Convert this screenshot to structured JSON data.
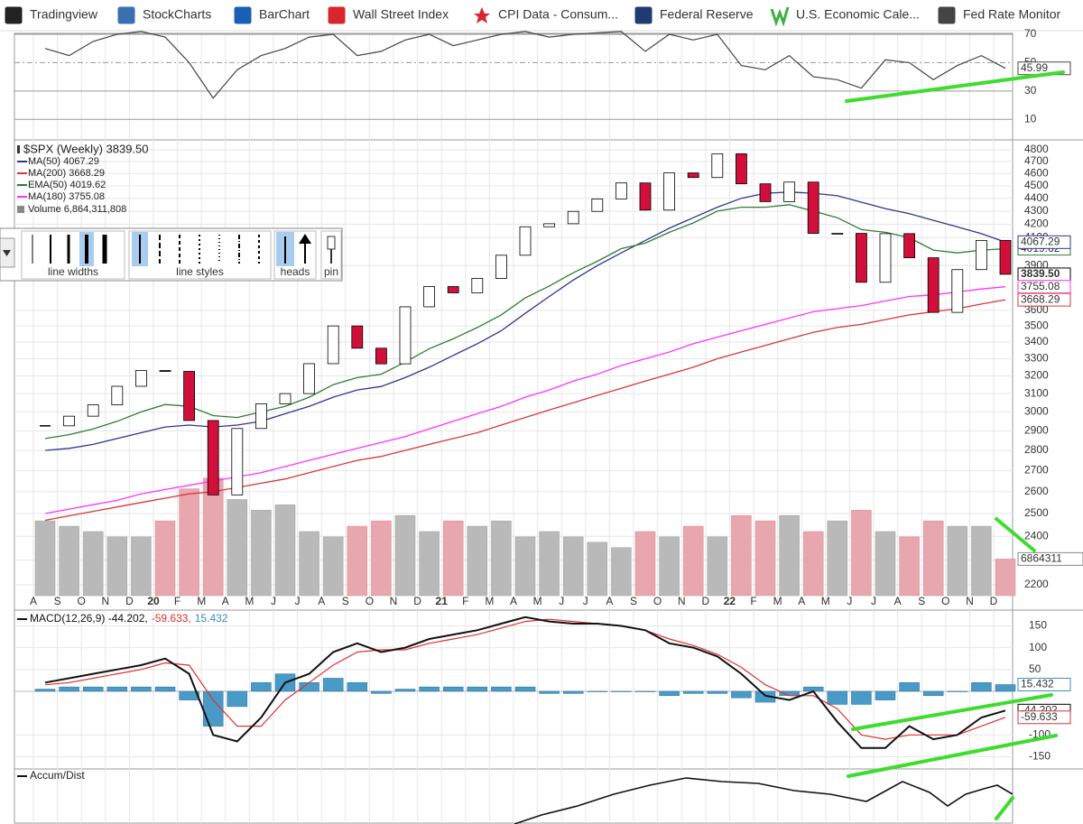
{
  "bookmarks": [
    "Tradingview",
    "StockCharts",
    "BarChart",
    "Wall Street Index",
    "CPI Data - Consum...",
    "Federal Reserve",
    "U.S. Economic Cale...",
    "Fed Rate Monitor"
  ],
  "months": [
    "A",
    "S",
    "O",
    "N",
    "D",
    "20",
    "F",
    "M",
    "A",
    "M",
    "J",
    "J",
    "A",
    "S",
    "O",
    "N",
    "D",
    "21",
    "F",
    "M",
    "A",
    "M",
    "J",
    "J",
    "A",
    "S",
    "O",
    "N",
    "D",
    "22",
    "F",
    "M",
    "A",
    "M",
    "J",
    "J",
    "A",
    "S",
    "O",
    "N",
    "D"
  ],
  "rsi": {
    "values": [
      60,
      55,
      65,
      70,
      72,
      68,
      50,
      25,
      45,
      55,
      60,
      68,
      70,
      55,
      58,
      66,
      70,
      62,
      66,
      70,
      72,
      68,
      70,
      71,
      72,
      58,
      70,
      66,
      70,
      48,
      45,
      55,
      40,
      38,
      32,
      52,
      50,
      38,
      48,
      55,
      45.99
    ],
    "ylim": [
      0,
      70
    ],
    "yticks": [
      70,
      50,
      30,
      10
    ],
    "last_label": 45.99
  },
  "price": {
    "title": "$SPX (Weekly) 3839.50",
    "log": true,
    "ylim": [
      2130,
      4886
    ],
    "yticks": [
      4800,
      4700,
      4600,
      4500,
      4400,
      4300,
      4200,
      4100,
      3900,
      3600,
      3500,
      3400,
      3300,
      3200,
      3100,
      3000,
      2900,
      2800,
      2700,
      2600,
      2500,
      2400,
      2300,
      2200
    ],
    "close": [
      2926,
      2977,
      3038,
      3141,
      3231,
      3226,
      2954,
      2585,
      2912,
      3044,
      3100,
      3271,
      3500,
      3363,
      3270,
      3622,
      3756,
      3714,
      3811,
      3973,
      4181,
      4204,
      4298,
      4395,
      4523,
      4308,
      4605,
      4567,
      4766,
      4516,
      4374,
      4530,
      4132,
      4132,
      3785,
      4130,
      3955,
      3586,
      3872,
      4080,
      3839.5
    ],
    "series": [
      {
        "name": "MA(50) 4067.29",
        "color": "#2f3592",
        "values": [
          2800,
          2810,
          2830,
          2860,
          2890,
          2920,
          2930,
          2920,
          2930,
          2950,
          2990,
          3030,
          3080,
          3120,
          3140,
          3190,
          3250,
          3320,
          3390,
          3470,
          3580,
          3690,
          3800,
          3900,
          3990,
          4080,
          4170,
          4250,
          4330,
          4400,
          4440,
          4450,
          4440,
          4420,
          4370,
          4320,
          4280,
          4230,
          4180,
          4130,
          4067.29
        ]
      },
      {
        "name": "MA(200) 3668.29",
        "color": "#d9363e",
        "values": [
          2470,
          2490,
          2510,
          2530,
          2550,
          2570,
          2590,
          2600,
          2620,
          2640,
          2660,
          2690,
          2720,
          2750,
          2770,
          2800,
          2830,
          2860,
          2890,
          2930,
          2970,
          3010,
          3050,
          3090,
          3130,
          3170,
          3210,
          3250,
          3300,
          3340,
          3380,
          3420,
          3460,
          3490,
          3510,
          3540,
          3570,
          3590,
          3610,
          3640,
          3668.29
        ]
      },
      {
        "name": "EMA(50) 4019.62",
        "color": "#2e7d32",
        "values": [
          2860,
          2880,
          2910,
          2950,
          3000,
          3040,
          3030,
          2980,
          2970,
          3000,
          3030,
          3080,
          3150,
          3190,
          3210,
          3280,
          3360,
          3420,
          3490,
          3570,
          3680,
          3760,
          3850,
          3930,
          4020,
          4060,
          4140,
          4210,
          4300,
          4330,
          4330,
          4350,
          4300,
          4250,
          4160,
          4140,
          4100,
          4010,
          3990,
          4010,
          4019.62
        ]
      },
      {
        "name": "MA(180) 3755.08",
        "color": "#ff33ff",
        "values": [
          2500,
          2520,
          2540,
          2560,
          2590,
          2610,
          2630,
          2650,
          2670,
          2690,
          2720,
          2750,
          2780,
          2810,
          2840,
          2870,
          2910,
          2950,
          2990,
          3030,
          3080,
          3120,
          3170,
          3210,
          3260,
          3300,
          3340,
          3390,
          3430,
          3470,
          3510,
          3550,
          3590,
          3610,
          3630,
          3660,
          3690,
          3700,
          3720,
          3740,
          3755.08
        ]
      }
    ],
    "last_labels": [
      {
        "value": 4019.62,
        "label": "4019.62",
        "color": "#2e7d32"
      },
      {
        "value": 4067.29,
        "label": "4067.29",
        "color": "#2f3592"
      },
      {
        "value": 3839.5,
        "label": "3839.50",
        "color": "#000000"
      },
      {
        "value": 3755.08,
        "label": "3755.08",
        "color": "#ff33ff"
      },
      {
        "value": 3668.29,
        "label": "3668.29",
        "color": "#d9363e"
      }
    ],
    "volume_legend": "Volume 6,864,311,808"
  },
  "volume": {
    "values": [
      14,
      13,
      12,
      11,
      11,
      14,
      20,
      22,
      18,
      16,
      17,
      12,
      11,
      13,
      14,
      15,
      12,
      14,
      13,
      14,
      11,
      12,
      11,
      10,
      9,
      12,
      11,
      13,
      11,
      15,
      14,
      15,
      12,
      14,
      16,
      12,
      11,
      14,
      13,
      13,
      6.86
    ],
    "ylim": [
      0,
      25
    ],
    "last_label": 6864311
  },
  "toolbar": {
    "labels": [
      "line widths",
      "line styles",
      "heads",
      "pin"
    ]
  },
  "macd": {
    "title": [
      "MACD(12,26,9) -44.202,",
      "-59.633,",
      "15.432"
    ],
    "macd": [
      20,
      30,
      40,
      50,
      60,
      75,
      40,
      -100,
      -115,
      -60,
      20,
      40,
      90,
      110,
      90,
      100,
      120,
      130,
      140,
      155,
      170,
      160,
      155,
      155,
      150,
      140,
      110,
      100,
      80,
      40,
      -10,
      -20,
      0,
      -70,
      -130,
      -130,
      -80,
      -110,
      -100,
      -60,
      -44.202
    ],
    "signal": [
      15,
      20,
      30,
      40,
      50,
      65,
      60,
      -20,
      -80,
      -80,
      -20,
      20,
      60,
      90,
      95,
      95,
      110,
      120,
      130,
      145,
      160,
      165,
      160,
      155,
      150,
      140,
      120,
      105,
      85,
      55,
      15,
      -10,
      -10,
      -40,
      -100,
      -110,
      -100,
      -100,
      -100,
      -80,
      -59.633
    ],
    "hist": [
      5,
      10,
      10,
      10,
      10,
      10,
      -20,
      -80,
      -35,
      20,
      40,
      20,
      30,
      20,
      -5,
      5,
      10,
      10,
      10,
      10,
      10,
      -5,
      -5,
      0,
      0,
      0,
      -10,
      -5,
      -5,
      -15,
      -25,
      -10,
      10,
      -30,
      -30,
      -20,
      20,
      -10,
      0,
      20,
      15.432
    ],
    "ylim": [
      -178,
      182
    ],
    "yticks": [
      150,
      100,
      50,
      -100,
      -150
    ],
    "last_labels": [
      {
        "value": 15.432,
        "color": "#3d8fc2"
      },
      {
        "value": -44.202,
        "color": "#000000"
      },
      {
        "value": -59.633,
        "color": "#d9363e"
      }
    ]
  },
  "accum": {
    "title": "Accum/Dist"
  }
}
